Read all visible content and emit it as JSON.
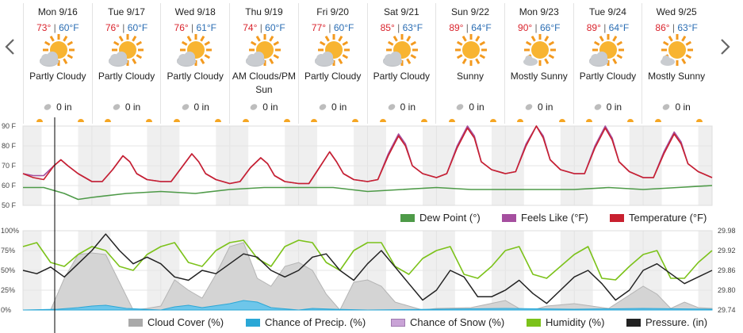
{
  "nav": {
    "prev_icon": "chevron-left-icon",
    "next_icon": "chevron-right-icon"
  },
  "days": [
    {
      "date": "Mon 9/16",
      "hi": "73°",
      "lo": "60°F",
      "cond": "Partly Cloudy",
      "icon": "partly-cloudy-icon",
      "precip": "0 in"
    },
    {
      "date": "Tue 9/17",
      "hi": "76°",
      "lo": "60°F",
      "cond": "Partly Cloudy",
      "icon": "partly-cloudy-icon",
      "precip": "0 in"
    },
    {
      "date": "Wed 9/18",
      "hi": "76°",
      "lo": "61°F",
      "cond": "Partly Cloudy",
      "icon": "partly-cloudy-icon",
      "precip": "0 in"
    },
    {
      "date": "Thu 9/19",
      "hi": "74°",
      "lo": "60°F",
      "cond": "AM Clouds/PM Sun",
      "icon": "partly-cloudy-icon",
      "precip": "0 in"
    },
    {
      "date": "Fri 9/20",
      "hi": "77°",
      "lo": "60°F",
      "cond": "Partly Cloudy",
      "icon": "partly-cloudy-icon",
      "precip": "0 in"
    },
    {
      "date": "Sat 9/21",
      "hi": "85°",
      "lo": "63°F",
      "cond": "Partly Cloudy",
      "icon": "partly-cloudy-icon",
      "precip": "0 in"
    },
    {
      "date": "Sun 9/22",
      "hi": "89°",
      "lo": "64°F",
      "cond": "Sunny",
      "icon": "sunny-icon",
      "precip": "0 in"
    },
    {
      "date": "Mon 9/23",
      "hi": "90°",
      "lo": "66°F",
      "cond": "Mostly Sunny",
      "icon": "mostly-sunny-icon",
      "precip": "0 in"
    },
    {
      "date": "Tue 9/24",
      "hi": "89°",
      "lo": "64°F",
      "cond": "Partly Cloudy",
      "icon": "partly-cloudy-icon",
      "precip": "0 in"
    },
    {
      "date": "Wed 9/25",
      "hi": "86°",
      "lo": "63°F",
      "cond": "Mostly Sunny",
      "icon": "mostly-sunny-icon",
      "precip": "0 in"
    }
  ],
  "temp_chart": {
    "y_ticks": [
      "90 F",
      "80 F",
      "70 F",
      "60 F",
      "50 F"
    ],
    "legend": [
      "Dew Point (°)",
      "Feels Like (°F)",
      "Temperature (°F)"
    ],
    "colors": {
      "dew": "#4e9a48",
      "feels": "#a54f9f",
      "temp": "#c8202f"
    }
  },
  "atmo_chart": {
    "y_ticks_left": [
      "100%",
      "75%",
      "50%",
      "25%",
      "0%"
    ],
    "y_ticks_right": [
      "29.98",
      "29.92",
      "29.86",
      "29.80",
      "29.74"
    ],
    "legend": [
      "Cloud Cover (%)",
      "Chance of Precip. (%)",
      "Chance of Snow (%)",
      "Humidity (%)",
      "Pressure. (in)"
    ],
    "colors": {
      "cloud": "#a9a9a9",
      "precip": "#2aa7d6",
      "snow": "#c9a3d6",
      "humidity": "#7cc21a",
      "pressure": "#222222"
    }
  },
  "chart_data": [
    {
      "type": "line",
      "x_unit": "day index (0 = Mon 9/16 00:00)",
      "ylim": [
        50,
        90
      ],
      "series": [
        {
          "name": "Temperature (°F)",
          "x": [
            0,
            0.15,
            0.3,
            0.45,
            0.55,
            0.65,
            0.8,
            1,
            1.15,
            1.3,
            1.45,
            1.55,
            1.65,
            1.8,
            2,
            2.15,
            2.3,
            2.45,
            2.55,
            2.65,
            2.8,
            3,
            3.15,
            3.3,
            3.45,
            3.55,
            3.65,
            3.8,
            4,
            4.15,
            4.3,
            4.45,
            4.55,
            4.65,
            4.8,
            5,
            5.15,
            5.3,
            5.45,
            5.55,
            5.65,
            5.8,
            6,
            6.15,
            6.3,
            6.45,
            6.55,
            6.65,
            6.8,
            7,
            7.15,
            7.3,
            7.45,
            7.55,
            7.65,
            7.8,
            8,
            8.15,
            8.3,
            8.45,
            8.55,
            8.65,
            8.8,
            9,
            9.15,
            9.3,
            9.45,
            9.55,
            9.65,
            9.8,
            10
          ],
          "y": [
            66,
            64,
            63,
            70,
            73,
            70,
            66,
            62,
            62,
            68,
            75,
            72,
            66,
            63,
            62,
            62,
            69,
            76,
            72,
            66,
            63,
            61,
            62,
            69,
            74,
            71,
            65,
            62,
            61,
            61,
            69,
            77,
            72,
            66,
            63,
            62,
            63,
            75,
            85,
            80,
            70,
            66,
            64,
            66,
            79,
            89,
            84,
            72,
            68,
            66,
            67,
            80,
            90,
            84,
            73,
            68,
            66,
            66,
            79,
            89,
            83,
            72,
            67,
            64,
            64,
            76,
            86,
            81,
            71,
            67,
            64
          ]
        },
        {
          "name": "Feels Like (°F)",
          "x": [
            0,
            0.15,
            0.3,
            0.45,
            0.55,
            0.65,
            0.8,
            1,
            1.15,
            1.3,
            1.45,
            1.55,
            1.65,
            1.8,
            2,
            2.15,
            2.3,
            2.45,
            2.55,
            2.65,
            2.8,
            3,
            3.15,
            3.3,
            3.45,
            3.55,
            3.65,
            3.8,
            4,
            4.15,
            4.3,
            4.45,
            4.55,
            4.65,
            4.8,
            5,
            5.15,
            5.3,
            5.45,
            5.55,
            5.65,
            5.8,
            6,
            6.15,
            6.3,
            6.45,
            6.55,
            6.65,
            6.8,
            7,
            7.15,
            7.3,
            7.45,
            7.55,
            7.65,
            7.8,
            8,
            8.15,
            8.3,
            8.45,
            8.55,
            8.65,
            8.8,
            9,
            9.15,
            9.3,
            9.45,
            9.55,
            9.65,
            9.8,
            10
          ],
          "y": [
            66,
            65,
            65,
            70,
            73,
            70,
            66,
            62,
            62,
            68,
            75,
            72,
            66,
            63,
            62,
            62,
            69,
            76,
            72,
            66,
            63,
            61,
            62,
            69,
            74,
            71,
            65,
            62,
            61,
            61,
            69,
            77,
            72,
            66,
            63,
            62,
            63,
            76,
            86,
            81,
            70,
            66,
            64,
            66,
            80,
            90,
            85,
            72,
            68,
            66,
            67,
            81,
            90,
            85,
            73,
            68,
            66,
            66,
            80,
            90,
            84,
            72,
            67,
            64,
            64,
            77,
            87,
            82,
            71,
            67,
            64
          ]
        },
        {
          "name": "Dew Point (°)",
          "x": [
            0,
            0.3,
            0.6,
            0.8,
            1,
            1.5,
            2,
            2.5,
            3,
            3.5,
            4,
            4.5,
            5,
            5.5,
            6,
            6.5,
            7,
            7.5,
            8,
            8.5,
            9,
            9.5,
            10
          ],
          "y": [
            59,
            59,
            56,
            53,
            54,
            56,
            57,
            56,
            58,
            59,
            59,
            59,
            57,
            58,
            59,
            58,
            58,
            58,
            58,
            59,
            58,
            59,
            60
          ]
        }
      ]
    },
    {
      "type": "area",
      "x_unit": "day index (0 = Mon 9/16 00:00)",
      "ylim": [
        0,
        100
      ],
      "y2lim": [
        29.74,
        29.98
      ],
      "series": [
        {
          "name": "Cloud Cover (%)",
          "x": [
            0,
            0.4,
            0.6,
            0.8,
            1.0,
            1.2,
            1.4,
            1.6,
            1.8,
            2,
            2.2,
            2.4,
            2.6,
            2.8,
            3.0,
            3.2,
            3.4,
            3.6,
            3.8,
            4.0,
            4.2,
            4.4,
            4.6,
            4.8,
            5.0,
            5.2,
            5.4,
            5.6,
            5.8,
            6,
            6.5,
            7,
            7.2,
            7.4,
            7.6,
            8,
            8.5,
            9,
            9.2,
            9.4,
            9.6,
            9.8,
            10
          ],
          "y": [
            0,
            0,
            40,
            70,
            72,
            70,
            35,
            0,
            2,
            5,
            38,
            25,
            15,
            45,
            80,
            85,
            40,
            30,
            55,
            60,
            50,
            20,
            0,
            35,
            38,
            30,
            10,
            5,
            0,
            2,
            3,
            12,
            2,
            0,
            5,
            8,
            2,
            30,
            20,
            2,
            10,
            3,
            2
          ]
        },
        {
          "name": "Chance of Precip. (%)",
          "x": [
            0,
            0.5,
            0.8,
            1.0,
            1.2,
            1.5,
            2,
            2.2,
            2.4,
            2.6,
            3.0,
            3.2,
            3.4,
            3.6,
            4,
            4.2,
            4.5,
            5,
            6,
            7,
            8,
            9,
            10
          ],
          "y": [
            0,
            1,
            3,
            5,
            6,
            2,
            0,
            4,
            6,
            3,
            8,
            12,
            10,
            3,
            0,
            2,
            1,
            0,
            1,
            2,
            1,
            2,
            1
          ]
        },
        {
          "name": "Humidity (%)",
          "x": [
            0,
            0.2,
            0.4,
            0.6,
            0.8,
            1.0,
            1.2,
            1.4,
            1.6,
            1.8,
            2,
            2.2,
            2.4,
            2.6,
            2.8,
            3.0,
            3.2,
            3.4,
            3.6,
            3.8,
            4,
            4.2,
            4.4,
            4.6,
            4.8,
            5,
            5.2,
            5.4,
            5.6,
            5.8,
            6,
            6.2,
            6.4,
            6.6,
            6.8,
            7,
            7.2,
            7.4,
            7.6,
            7.8,
            8,
            8.2,
            8.4,
            8.6,
            8.8,
            9,
            9.2,
            9.4,
            9.6,
            9.8,
            10
          ],
          "y": [
            80,
            85,
            60,
            55,
            70,
            80,
            75,
            55,
            50,
            70,
            80,
            85,
            60,
            55,
            75,
            85,
            88,
            65,
            55,
            80,
            88,
            85,
            60,
            50,
            75,
            85,
            85,
            55,
            45,
            65,
            75,
            80,
            45,
            40,
            55,
            75,
            80,
            45,
            40,
            55,
            70,
            80,
            40,
            38,
            55,
            70,
            75,
            40,
            40,
            60,
            75
          ]
        },
        {
          "name": "Pressure. (in)",
          "x": [
            0,
            0.2,
            0.4,
            0.6,
            0.8,
            1.0,
            1.2,
            1.4,
            1.6,
            1.8,
            2,
            2.2,
            2.4,
            2.6,
            2.8,
            3.0,
            3.2,
            3.4,
            3.6,
            3.8,
            4,
            4.2,
            4.4,
            4.6,
            4.8,
            5,
            5.2,
            5.4,
            5.6,
            5.8,
            6,
            6.2,
            6.4,
            6.6,
            6.8,
            7,
            7.2,
            7.4,
            7.6,
            7.8,
            8,
            8.2,
            8.4,
            8.6,
            8.8,
            9,
            9.2,
            9.4,
            9.6,
            9.8,
            10
          ],
          "y": [
            29.86,
            29.85,
            29.87,
            29.84,
            29.88,
            29.92,
            29.97,
            29.92,
            29.88,
            29.9,
            29.88,
            29.84,
            29.83,
            29.86,
            29.85,
            29.88,
            29.91,
            29.9,
            29.86,
            29.84,
            29.86,
            29.9,
            29.91,
            29.86,
            29.83,
            29.88,
            29.92,
            29.87,
            29.82,
            29.77,
            29.8,
            29.86,
            29.84,
            29.78,
            29.78,
            29.8,
            29.83,
            29.79,
            29.76,
            29.8,
            29.84,
            29.86,
            29.82,
            29.77,
            29.8,
            29.86,
            29.88,
            29.85,
            29.82,
            29.84,
            29.86
          ]
        }
      ]
    }
  ]
}
